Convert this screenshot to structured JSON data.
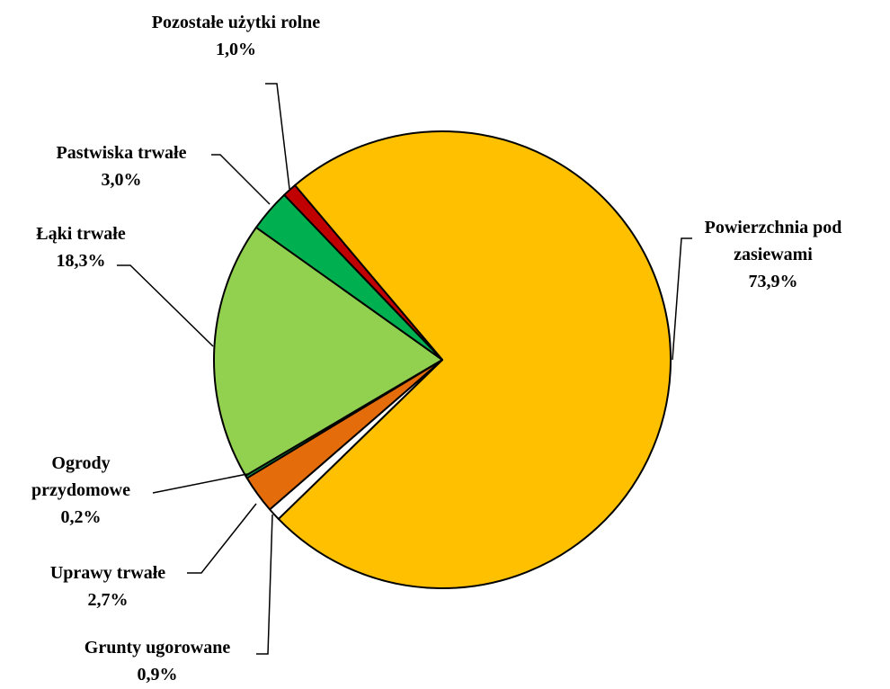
{
  "chart_data": {
    "type": "pie",
    "categories": [
      "Powierzchnia pod zasiewami",
      "Grunty ugorowane",
      "Uprawy trwałe",
      "Ogrody przydomowe",
      "Łąki trwałe",
      "Pastwiska trwałe",
      "Pozostałe użytki rolne"
    ],
    "values": [
      73.9,
      0.9,
      2.7,
      0.2,
      18.3,
      3.0,
      1.0
    ],
    "value_labels": [
      "73,9%",
      "0,9%",
      "2,7%",
      "0,2%",
      "18,3%",
      "3,0%",
      "1,0%"
    ],
    "colors": [
      "#FFC000",
      "#FFFFFF",
      "#E46C0A",
      "#00A050",
      "#92D050",
      "#00B050",
      "#C00000"
    ]
  }
}
